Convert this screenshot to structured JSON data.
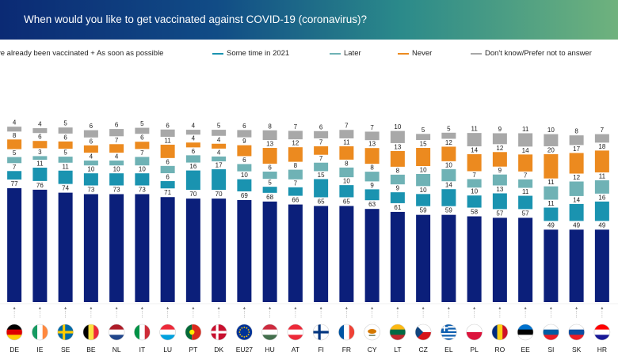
{
  "title": "When would you like to get vaccinated against COVID-19 (coronavirus)?",
  "chart_data": {
    "type": "bar",
    "stacked": true,
    "categories": [
      "DE",
      "IE",
      "SE",
      "BE",
      "NL",
      "IT",
      "LU",
      "PT",
      "DK",
      "EU27",
      "HU",
      "AT",
      "FI",
      "FR",
      "CY",
      "LT",
      "CZ",
      "EL",
      "PL",
      "RO",
      "EE",
      "SI",
      "SK",
      "HR"
    ],
    "series": [
      {
        "name": "ve already been vaccinated + As soon as possible",
        "color": "#0b1f7a",
        "values": [
          77,
          76,
          74,
          73,
          73,
          73,
          71,
          70,
          70,
          69,
          68,
          66,
          65,
          65,
          63,
          61,
          59,
          59,
          58,
          57,
          57,
          49,
          49,
          49
        ]
      },
      {
        "name": "Some time in 2021",
        "color": "#1a93b0",
        "values": [
          7,
          11,
          11,
          10,
          10,
          10,
          6,
          16,
          17,
          10,
          5,
          7,
          15,
          10,
          9,
          9,
          10,
          14,
          10,
          13,
          11,
          11,
          14,
          16
        ]
      },
      {
        "name": "Later",
        "color": "#6fb2b5",
        "values": [
          5,
          3,
          5,
          4,
          4,
          7,
          6,
          6,
          4,
          6,
          6,
          8,
          7,
          8,
          8,
          8,
          10,
          10,
          7,
          9,
          7,
          11,
          12,
          11
        ]
      },
      {
        "name": "Never",
        "color": "#ec8a1f",
        "values": [
          8,
          6,
          6,
          6,
          7,
          6,
          11,
          4,
          4,
          9,
          13,
          12,
          7,
          11,
          13,
          13,
          15,
          12,
          14,
          12,
          14,
          20,
          17,
          18
        ]
      },
      {
        "name": "Don't know/Prefer not to answer",
        "color": "#a8a8a8",
        "values": [
          4,
          4,
          5,
          6,
          6,
          5,
          6,
          4,
          5,
          6,
          8,
          7,
          6,
          7,
          7,
          10,
          5,
          5,
          11,
          9,
          11,
          10,
          8,
          7
        ]
      }
    ],
    "ylim": [
      0,
      100
    ],
    "legend": "top",
    "grid": false
  }
}
